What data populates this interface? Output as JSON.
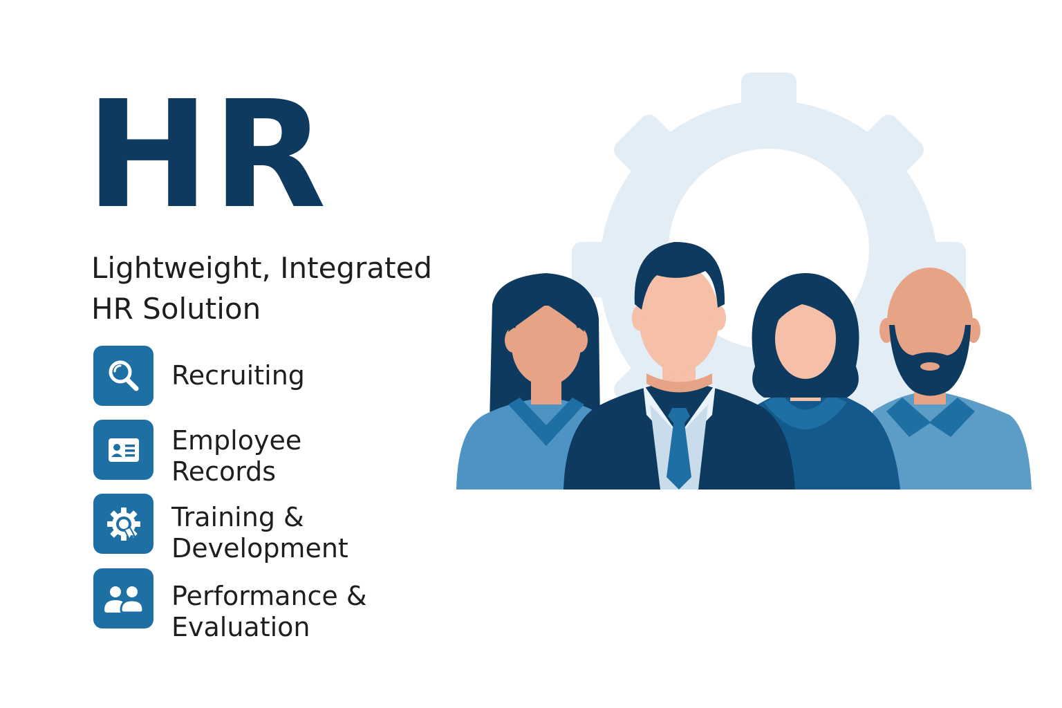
{
  "header": {
    "title": "HR",
    "subtitle": "Lightweight, Integrated HR Solution"
  },
  "features": [
    {
      "label": "Recruiting",
      "icon": "search-icon"
    },
    {
      "label": "Employee\nRecords",
      "icon": "id-card-icon"
    },
    {
      "label": "Training &\nDevelopment",
      "icon": "gear-badge-icon"
    },
    {
      "label": "Performance &\nEvaluation",
      "icon": "people-icon"
    }
  ],
  "colors": {
    "title": "#0d3a5e",
    "tile": "#1e70a4",
    "gear": "#e3edf6",
    "navy": "#0d3a5e",
    "blue_mid": "#1e70a4",
    "blue_light": "#4d93c4",
    "skin_light": "#f5bfa8",
    "skin_dark": "#e6a386"
  },
  "illustration": {
    "icon": "hr-team-illustration"
  }
}
